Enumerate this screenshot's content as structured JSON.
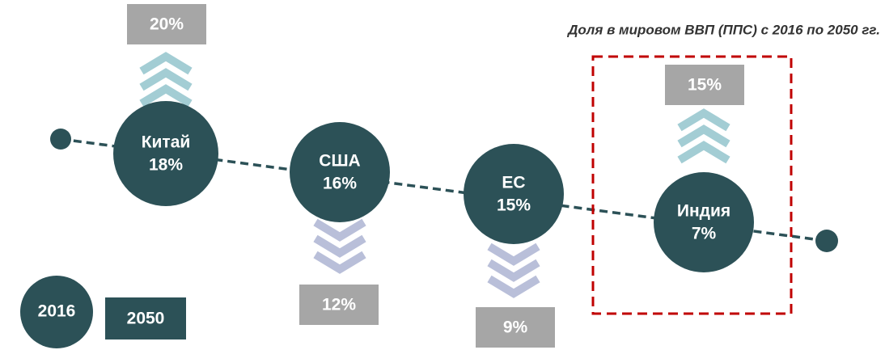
{
  "title": "Доля в мировом ВВП (ППС) с 2016 по 2050 гг.",
  "nodes": [
    {
      "label": "Китай",
      "value_2016": "18%",
      "value_2050": "20%"
    },
    {
      "label": "США",
      "value_2016": "16%",
      "value_2050": "12%"
    },
    {
      "label": "ЕС",
      "value_2016": "15%",
      "value_2050": "9%"
    },
    {
      "label": "Индия",
      "value_2016": "7%",
      "value_2050": "15%"
    }
  ],
  "legend": {
    "circle": "2016",
    "box": "2050"
  }
}
